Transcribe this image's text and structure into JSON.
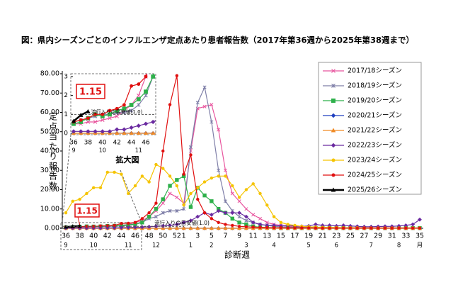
{
  "chart_data": {
    "type": "line",
    "title": "図：県内シーズンごとのインフルエンザ定点あたり患者報告数（2017年第36週から2025年第38週まで）",
    "y_label": "定点当たり報告数",
    "x_label": "診断週",
    "categories": [
      "36",
      null,
      "38",
      null,
      "40",
      null,
      "42",
      null,
      "44",
      null,
      "46",
      null,
      "48",
      null,
      "50",
      null,
      "52",
      "1",
      null,
      "3",
      null,
      "5",
      null,
      "7",
      null,
      "9",
      null,
      "11",
      null,
      "13",
      null,
      "15",
      null,
      "17",
      null,
      "19",
      null,
      "21",
      null,
      "23",
      null,
      "25",
      null,
      "27",
      null,
      "29",
      null,
      "31",
      null,
      "33",
      null,
      "35"
    ],
    "month_labels": [
      "9",
      null,
      null,
      null,
      "10",
      null,
      null,
      null,
      null,
      "11",
      null,
      null,
      null,
      "12",
      null,
      null,
      null,
      null,
      "1",
      null,
      null,
      "2",
      null,
      null,
      null,
      null,
      "3",
      null,
      null,
      null,
      "4",
      null,
      null,
      null,
      null,
      "5",
      null,
      null,
      null,
      "6",
      null,
      null,
      null,
      null,
      "7",
      null,
      null,
      null,
      "8",
      null,
      null,
      "月"
    ],
    "ylim": [
      0,
      80
    ],
    "yticks": [
      {
        "value": 0,
        "label": "0.00"
      },
      {
        "value": 10,
        "label": "10.00"
      },
      {
        "value": 20,
        "label": "20.00"
      },
      {
        "value": 30,
        "label": "30.00"
      },
      {
        "value": 40,
        "label": "40.00"
      },
      {
        "value": 50,
        "label": "50.00"
      },
      {
        "value": 60,
        "label": "60.00"
      },
      {
        "value": 70,
        "label": "70.00"
      },
      {
        "value": 80,
        "label": "80.00"
      }
    ],
    "grid": false,
    "legend_position": "right",
    "threshold": {
      "value": 1.0,
      "label": "流行入りの目安値(1.0)"
    },
    "inset": {
      "title": "拡大図",
      "ylim": [
        0,
        3
      ],
      "yticks": [
        0,
        1,
        2,
        3
      ]
    },
    "series": [
      {
        "name": "2017/18シーズン",
        "color": "#e8559e",
        "marker": "x",
        "values": [
          0.5,
          0.5,
          0.6,
          0.6,
          0.7,
          0.8,
          0.9,
          1.2,
          1.5,
          2,
          3,
          4,
          6,
          9,
          13,
          18,
          16,
          13,
          40,
          62,
          63,
          64,
          51,
          30,
          18,
          14,
          10,
          7,
          5,
          3,
          2,
          1.5,
          1,
          0.8,
          0.6,
          0.5,
          0.4,
          0.3,
          0.3,
          0.3,
          0.2,
          0.2,
          0.2,
          0.2,
          0.2,
          0.1,
          0.1,
          0.1,
          0.1,
          0.1,
          0.1,
          0.1
        ]
      },
      {
        "name": "2018/19シーズン",
        "color": "#7f7fa8",
        "marker": "asterisk",
        "values": [
          0.6,
          0.7,
          0.8,
          0.9,
          1,
          1,
          1.1,
          1.1,
          1.2,
          1.5,
          2,
          3,
          5,
          6,
          8,
          9,
          9,
          10,
          42,
          65,
          73,
          55,
          30,
          14,
          9,
          6,
          4,
          3,
          2,
          1.5,
          1,
          0.8,
          0.6,
          0.5,
          0.4,
          0.3,
          0.3,
          0.2,
          0.2,
          0.2,
          0.2,
          0.1,
          0.1,
          0.1,
          0.1,
          0.1,
          0.1,
          0.1,
          0.1,
          0.1,
          0.1,
          0.1
        ]
      },
      {
        "name": "2019/20シーズン",
        "color": "#2eb04b",
        "marker": "square",
        "values": [
          0.5,
          0.6,
          0.8,
          1,
          0.9,
          1,
          1.2,
          1.3,
          1.5,
          1.8,
          2.2,
          3,
          6,
          10,
          15,
          22,
          25,
          27,
          11,
          21,
          17,
          14,
          10,
          8,
          5,
          3,
          2,
          1,
          0.5,
          0.3,
          0.2,
          0.1,
          0.1,
          0.1,
          0.1,
          0.1,
          0.1,
          0.1,
          0.1,
          0.1,
          0.1,
          0.1,
          0.1,
          0.1,
          0.1,
          0.1,
          0.1,
          0.1,
          0.1,
          0.1,
          0.1,
          0.1
        ]
      },
      {
        "name": "2020/21シーズン",
        "color": "#2040c0",
        "marker": "diamond",
        "values": [
          0,
          0,
          0,
          0,
          0,
          0,
          0,
          0,
          0,
          0,
          0,
          0,
          0,
          0,
          0,
          0,
          0,
          0,
          0,
          0,
          0,
          0,
          0,
          0,
          0,
          0,
          0,
          0,
          0,
          0,
          0,
          0,
          0,
          0,
          0,
          0,
          0,
          0,
          0,
          0,
          0,
          0,
          0,
          0,
          0,
          0,
          0,
          0,
          0,
          0,
          0,
          0
        ]
      },
      {
        "name": "2021/22シーズン",
        "color": "#f08a24",
        "marker": "triangle",
        "values": [
          0,
          0,
          0,
          0,
          0,
          0,
          0,
          0,
          0,
          0,
          0,
          0,
          0,
          0,
          0,
          0,
          0,
          0,
          0,
          0,
          0,
          0,
          0,
          0,
          0,
          0,
          0,
          0,
          0,
          0,
          0,
          0,
          0,
          0,
          0,
          0,
          0,
          0,
          0,
          0,
          0,
          0,
          0,
          0,
          0,
          0,
          0,
          0,
          0,
          0,
          0,
          0
        ]
      },
      {
        "name": "2022/23シーズン",
        "color": "#6a2aa0",
        "marker": "diamond",
        "values": [
          0.1,
          0.1,
          0.1,
          0.1,
          0.1,
          0.1,
          0.2,
          0.2,
          0.3,
          0.4,
          0.5,
          0.6,
          0.8,
          1,
          1.2,
          1.5,
          2,
          3,
          4,
          6,
          8,
          7,
          9,
          8,
          8,
          8,
          6,
          3,
          2,
          1.5,
          1.5,
          1.2,
          1.5,
          1.2,
          1,
          1.2,
          2,
          1.5,
          1.5,
          1.2,
          1.5,
          1.2,
          1,
          0.8,
          0.8,
          0.9,
          1,
          1,
          1.2,
          1.5,
          2,
          4.5
        ]
      },
      {
        "name": "2023/24シーズン",
        "color": "#f5c400",
        "marker": "circle",
        "values": [
          8,
          14,
          15,
          18,
          21,
          21,
          29,
          29,
          28,
          18,
          22,
          27,
          24,
          33,
          31,
          27,
          22,
          12,
          18,
          21,
          24,
          26,
          27,
          27,
          22,
          16,
          20,
          23,
          18,
          12,
          6,
          3,
          2,
          1.5,
          1,
          0.8,
          0.6,
          0.5,
          0.4,
          0.4,
          0.3,
          0.3,
          0.3,
          0.2,
          0.2,
          0.2,
          0.2,
          0.2,
          0.2,
          0.2,
          0.2,
          0.2
        ]
      },
      {
        "name": "2024/25シーズン",
        "color": "#e01010",
        "marker": "circle",
        "values": [
          0.6,
          0.7,
          0.8,
          1,
          1,
          1.2,
          1.3,
          1.5,
          2.5,
          2.6,
          3,
          5,
          8,
          13,
          40,
          64,
          79,
          28,
          38,
          15,
          8,
          5,
          3,
          2,
          1.5,
          1,
          0.8,
          0.6,
          0.5,
          0.4,
          0.3,
          0.3,
          0.2,
          0.2,
          0.2,
          0.2,
          0.1,
          0.1,
          0.1,
          0.1,
          0.1,
          0.1,
          0.1,
          0.1,
          0.1,
          0.1,
          0.1,
          0.1,
          0.1,
          0.1,
          0.1,
          0.1
        ]
      },
      {
        "name": "2025/26シーズン",
        "color": "#000000",
        "marker": "triangle",
        "width": 2.5,
        "values": [
          0.64,
          0.96,
          1.15,
          null,
          null,
          null,
          null,
          null,
          null,
          null,
          null,
          null,
          null,
          null,
          null,
          null,
          null,
          null,
          null,
          null,
          null,
          null,
          null,
          null,
          null,
          null,
          null,
          null,
          null,
          null,
          null,
          null,
          null,
          null,
          null,
          null,
          null,
          null,
          null,
          null,
          null,
          null,
          null,
          null,
          null,
          null,
          null,
          null,
          null,
          null,
          null,
          null
        ]
      }
    ]
  }
}
